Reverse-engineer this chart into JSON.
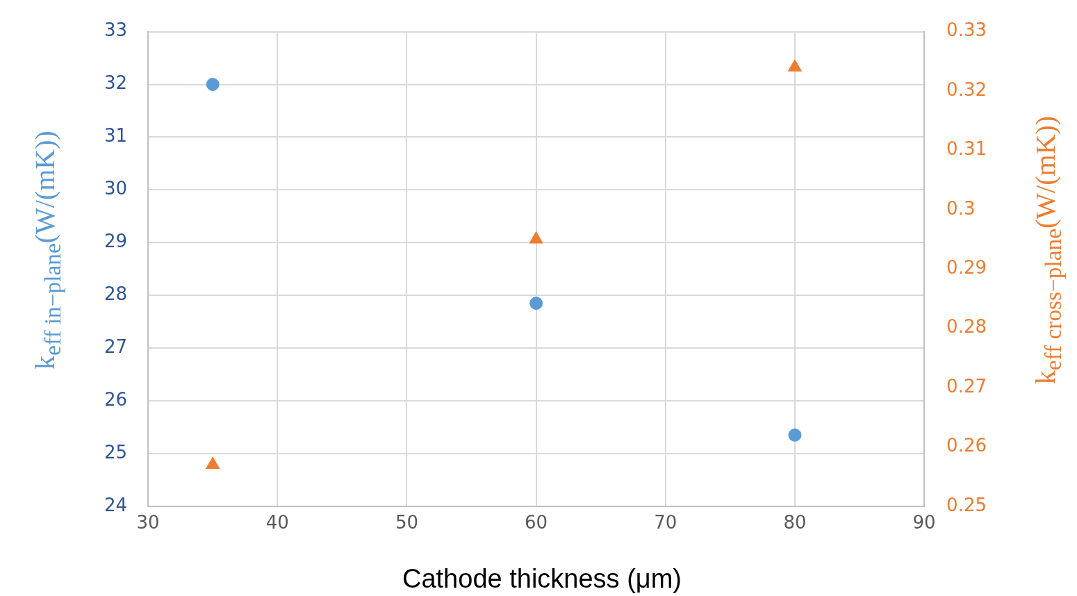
{
  "chart_data": {
    "type": "scatter",
    "xlabel": "Cathode thickness (μm)",
    "ylabel": "k$_{eff in−plane}$(W/(mK))",
    "y2label": "k$_{eff cross−plane}$(W/(mK))",
    "xlim": [
      30,
      90
    ],
    "xticks": [
      30,
      40,
      50,
      60,
      70,
      80,
      90
    ],
    "ylim": [
      24,
      33
    ],
    "yticks": [
      24,
      25,
      26,
      27,
      28,
      29,
      30,
      31,
      32,
      33
    ],
    "y2lim": [
      0.25,
      0.33
    ],
    "y2ticks": [
      0.25,
      0.26,
      0.27,
      0.28,
      0.29,
      0.3,
      0.31,
      0.32,
      0.33
    ],
    "grid": true,
    "legend": false,
    "series": [
      {
        "color": "#5b9bd5",
        "marker": "circle",
        "x": [
          35,
          60,
          80
        ],
        "values": [
          32.0,
          27.85,
          25.35
        ]
      },
      {
        "color": "#ed7d31",
        "marker": "triangle",
        "axis": "y2",
        "x": [
          35,
          60,
          80
        ],
        "values": [
          0.257,
          0.295,
          0.324
        ]
      }
    ]
  }
}
